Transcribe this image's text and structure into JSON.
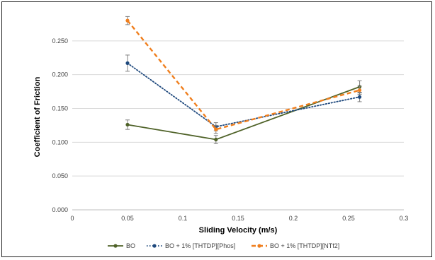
{
  "chart_data": {
    "type": "line",
    "title": "",
    "xlabel": "Sliding Velocity (m/s)",
    "ylabel": "Coefficient of Friction",
    "xlim": [
      0,
      0.3
    ],
    "ylim": [
      0,
      0.3
    ],
    "x_ticks": [
      "0",
      "0.05",
      "0.1",
      "0.15",
      "0.2",
      "0.25",
      "0.3"
    ],
    "y_ticks": [
      "0.000",
      "0.050",
      "0.100",
      "0.150",
      "0.200",
      "0.250"
    ],
    "grid": "horizontal",
    "legend_position": "bottom",
    "series": [
      {
        "name": "BO",
        "color": "#4f6228",
        "style": "solid",
        "x": [
          0.05,
          0.13,
          0.26
        ],
        "y": [
          0.126,
          0.104,
          0.182
        ],
        "err": [
          0.007,
          0.006,
          0.009
        ]
      },
      {
        "name": "BO + 1% [THTDP][Phos]",
        "color": "#1f497d",
        "style": "dotted",
        "x": [
          0.05,
          0.13,
          0.26
        ],
        "y": [
          0.217,
          0.123,
          0.167
        ],
        "err": [
          0.012,
          0.006,
          0.007
        ]
      },
      {
        "name": "BO + 1% [THTDP][NTf2]",
        "color": "#f07f1e",
        "style": "dashed",
        "x": [
          0.05,
          0.13,
          0.26
        ],
        "y": [
          0.28,
          0.119,
          0.177
        ],
        "err": [
          0.006,
          0.006,
          0.006
        ]
      }
    ]
  }
}
